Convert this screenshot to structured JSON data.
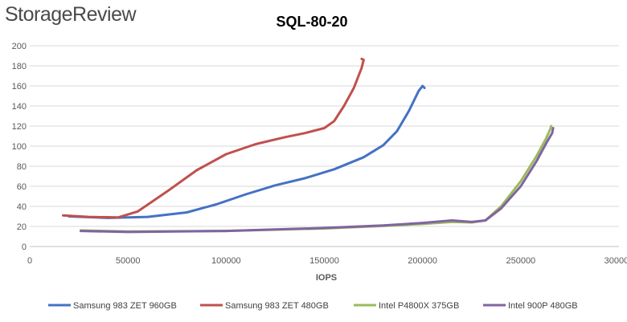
{
  "brand": {
    "logo_text": "StorageReview"
  },
  "chart_data": {
    "type": "line",
    "title": "SQL-80-20",
    "xlabel": "IOPS",
    "ylabel": "",
    "xlim": [
      0,
      300000
    ],
    "ylim": [
      0,
      200
    ],
    "x_ticks": [
      0,
      50000,
      100000,
      150000,
      200000,
      250000,
      300000
    ],
    "y_ticks": [
      0,
      20,
      40,
      60,
      80,
      100,
      120,
      140,
      160,
      180,
      200
    ],
    "grid": "horizontal",
    "legend_position": "bottom",
    "series": [
      {
        "name": "Samsung 983 ZET 960GB",
        "color": "#4472c4",
        "points": [
          [
            20000,
            30
          ],
          [
            40000,
            28.5
          ],
          [
            60000,
            29.5
          ],
          [
            80000,
            34
          ],
          [
            95000,
            42
          ],
          [
            110000,
            52
          ],
          [
            125000,
            61
          ],
          [
            140000,
            68
          ],
          [
            155000,
            77
          ],
          [
            170000,
            89
          ],
          [
            180000,
            101
          ],
          [
            187000,
            115
          ],
          [
            193000,
            135
          ],
          [
            198000,
            155
          ],
          [
            200000,
            160
          ],
          [
            201000,
            158
          ]
        ]
      },
      {
        "name": "Samsung 983 ZET 480GB",
        "color": "#c0504d",
        "points": [
          [
            17000,
            31
          ],
          [
            30000,
            29.5
          ],
          [
            45000,
            29
          ],
          [
            55000,
            35
          ],
          [
            70000,
            55
          ],
          [
            85000,
            76
          ],
          [
            100000,
            92
          ],
          [
            115000,
            102
          ],
          [
            130000,
            109
          ],
          [
            140000,
            113
          ],
          [
            150000,
            118
          ],
          [
            155000,
            125
          ],
          [
            160000,
            140
          ],
          [
            165000,
            158
          ],
          [
            169000,
            178
          ],
          [
            170000,
            186
          ],
          [
            169000,
            187
          ]
        ]
      },
      {
        "name": "Intel P4800X 375GB",
        "color": "#9bbb59",
        "points": [
          [
            26000,
            16
          ],
          [
            50000,
            15
          ],
          [
            100000,
            15.5
          ],
          [
            150000,
            18
          ],
          [
            180000,
            20.5
          ],
          [
            200000,
            22.5
          ],
          [
            215000,
            24.5
          ],
          [
            225000,
            24
          ],
          [
            232000,
            26
          ],
          [
            240000,
            40
          ],
          [
            250000,
            65
          ],
          [
            258000,
            90
          ],
          [
            263000,
            108
          ],
          [
            265000,
            117
          ],
          [
            265500,
            120
          ]
        ]
      },
      {
        "name": "Intel 900P 480GB",
        "color": "#8064a2",
        "points": [
          [
            26000,
            15.5
          ],
          [
            50000,
            14.5
          ],
          [
            100000,
            15.5
          ],
          [
            150000,
            18.5
          ],
          [
            180000,
            21
          ],
          [
            200000,
            23.5
          ],
          [
            215000,
            26
          ],
          [
            225000,
            24.5
          ],
          [
            232000,
            26
          ],
          [
            240000,
            38
          ],
          [
            250000,
            60
          ],
          [
            258000,
            85
          ],
          [
            263000,
            103
          ],
          [
            266000,
            113
          ],
          [
            266500,
            118
          ]
        ]
      }
    ]
  }
}
